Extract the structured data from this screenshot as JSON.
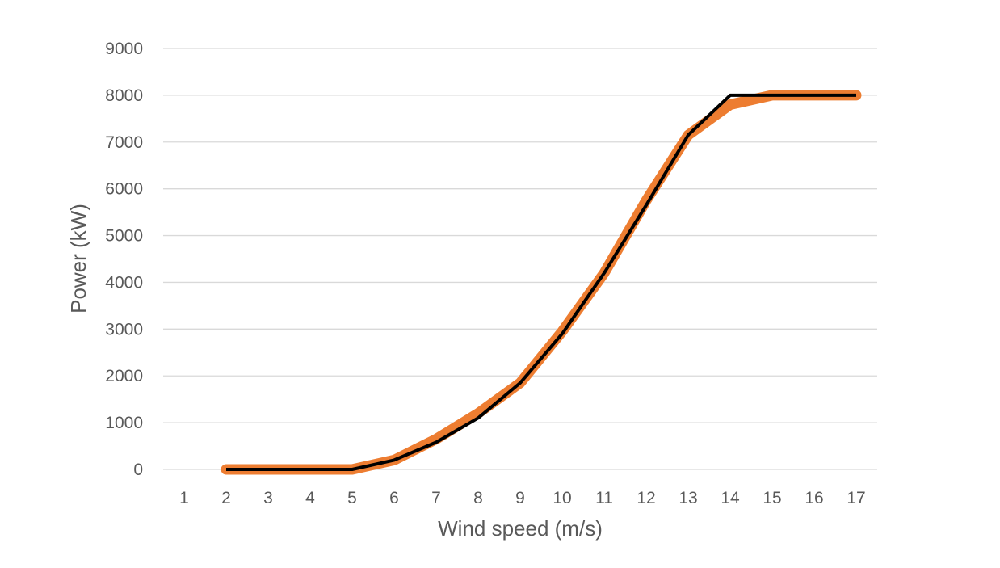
{
  "chart_data": {
    "type": "line",
    "title": "",
    "xlabel": "Wind speed (m/s)",
    "ylabel": "Power (kW)",
    "categories": [
      "1",
      "2",
      "3",
      "4",
      "5",
      "6",
      "7",
      "8",
      "9",
      "10",
      "11",
      "12",
      "13",
      "14",
      "15",
      "16",
      "17"
    ],
    "ylim": [
      0,
      9000
    ],
    "yticks": [
      "0",
      "1000",
      "2000",
      "3000",
      "4000",
      "5000",
      "6000",
      "7000",
      "8000",
      "9000"
    ],
    "grid": true,
    "legend": "none",
    "series": [
      {
        "color": "#ed7d31",
        "values": [
          null,
          0,
          0,
          0,
          0,
          200,
          650,
          1200,
          1850,
          2950,
          4200,
          5750,
          7150,
          7800,
          8000,
          8000,
          8000
        ]
      },
      {
        "color": "#000000",
        "values": [
          null,
          0,
          0,
          0,
          0,
          200,
          580,
          1100,
          1850,
          2900,
          4200,
          5650,
          7150,
          8000,
          8000,
          8000,
          8000
        ]
      }
    ]
  }
}
